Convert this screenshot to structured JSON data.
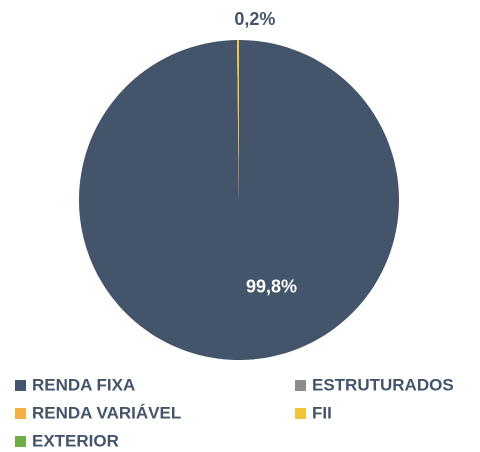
{
  "chart_data": {
    "type": "pie",
    "categories": [
      "RENDA FIXA",
      "ESTRUTURADOS",
      "RENDA VARIÁVEL",
      "FII",
      "EXTERIOR"
    ],
    "values": [
      99.8,
      0,
      0,
      0.2,
      0
    ],
    "value_labels": [
      "99,8%",
      null,
      null,
      "0,2%",
      null
    ],
    "colors": [
      "#44546a",
      "#8c8c8c",
      "#f4b042",
      "#f2c43a",
      "#70ad47"
    ],
    "legend": "bottom"
  }
}
